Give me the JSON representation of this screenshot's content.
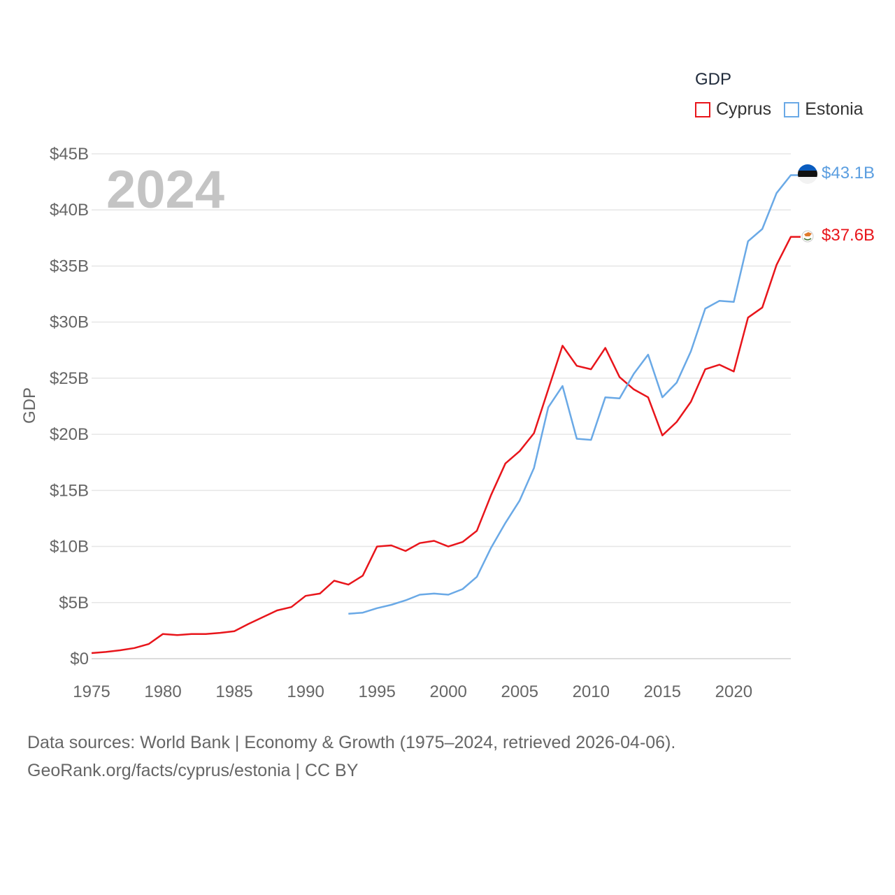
{
  "legend": {
    "title": "GDP",
    "items": [
      {
        "label": "Cyprus",
        "color": "#e8151b"
      },
      {
        "label": "Estonia",
        "color": "#6aa9e6"
      }
    ]
  },
  "current_year": "2024",
  "end_labels": {
    "cyprus": "$37.6B",
    "estonia": "$43.1B"
  },
  "footer": {
    "line1": "Data sources: World Bank | Economy & Growth (1975–2024, retrieved 2026-04-06).",
    "line2": "GeoRank.org/facts/cyprus/estonia | CC BY"
  },
  "chart_data": {
    "type": "line",
    "title": "GDP",
    "xlabel": "",
    "ylabel": "GDP",
    "xlim": [
      1975,
      2024
    ],
    "ylim": [
      0,
      45
    ],
    "y_unit": "billion USD",
    "x_ticks": [
      1975,
      1980,
      1985,
      1990,
      1995,
      2000,
      2005,
      2010,
      2015,
      2020
    ],
    "y_ticks": [
      0,
      5,
      10,
      15,
      20,
      25,
      30,
      35,
      40,
      45
    ],
    "y_tick_labels": [
      "$0",
      "$5B",
      "$10B",
      "$15B",
      "$20B",
      "$25B",
      "$30B",
      "$35B",
      "$40B",
      "$45B"
    ],
    "grid": true,
    "legend_position": "top-right",
    "series": [
      {
        "name": "Cyprus",
        "color": "#e8151b",
        "x": [
          1975,
          1976,
          1977,
          1978,
          1979,
          1980,
          1981,
          1982,
          1983,
          1984,
          1985,
          1986,
          1987,
          1988,
          1989,
          1990,
          1991,
          1992,
          1993,
          1994,
          1995,
          1996,
          1997,
          1998,
          1999,
          2000,
          2001,
          2002,
          2003,
          2004,
          2005,
          2006,
          2007,
          2008,
          2009,
          2010,
          2011,
          2012,
          2013,
          2014,
          2015,
          2016,
          2017,
          2018,
          2019,
          2020,
          2021,
          2022,
          2023,
          2024
        ],
        "values": [
          0.5,
          0.6,
          0.75,
          0.95,
          1.3,
          2.2,
          2.1,
          2.2,
          2.2,
          2.3,
          2.45,
          3.1,
          3.7,
          4.3,
          4.6,
          5.6,
          5.8,
          6.95,
          6.6,
          7.4,
          10.0,
          10.1,
          9.6,
          10.3,
          10.5,
          10.0,
          10.4,
          11.4,
          14.6,
          17.4,
          18.5,
          20.1,
          24.0,
          27.9,
          26.1,
          25.8,
          27.7,
          25.1,
          24.0,
          23.3,
          19.9,
          21.1,
          22.9,
          25.8,
          26.2,
          25.6,
          30.4,
          31.3,
          35.1,
          37.6
        ]
      },
      {
        "name": "Estonia",
        "color": "#6aa9e6",
        "x": [
          1993,
          1994,
          1995,
          1996,
          1997,
          1998,
          1999,
          2000,
          2001,
          2002,
          2003,
          2004,
          2005,
          2006,
          2007,
          2008,
          2009,
          2010,
          2011,
          2012,
          2013,
          2014,
          2015,
          2016,
          2017,
          2018,
          2019,
          2020,
          2021,
          2022,
          2023,
          2024
        ],
        "values": [
          4.0,
          4.1,
          4.5,
          4.8,
          5.2,
          5.7,
          5.8,
          5.7,
          6.2,
          7.3,
          9.9,
          12.1,
          14.1,
          17.0,
          22.4,
          24.3,
          19.6,
          19.5,
          23.3,
          23.2,
          25.4,
          27.1,
          23.3,
          24.6,
          27.4,
          31.2,
          31.9,
          31.8,
          37.2,
          38.3,
          41.5,
          43.1
        ]
      }
    ]
  }
}
